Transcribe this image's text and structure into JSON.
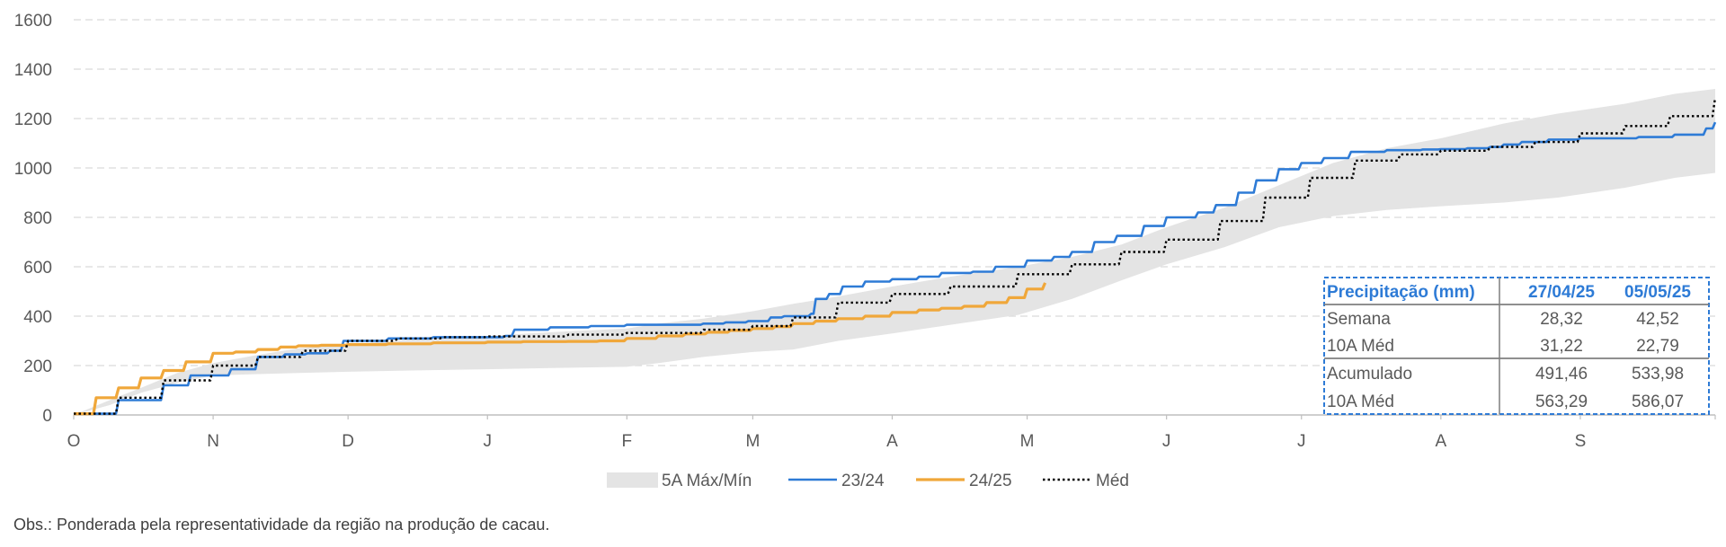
{
  "chart_data": {
    "type": "line",
    "title": "",
    "xlabel": "",
    "ylabel": "",
    "ylim": [
      0,
      1600
    ],
    "yticks": [
      0,
      200,
      400,
      600,
      800,
      1000,
      1200,
      1400,
      1600
    ],
    "xlim": [
      0,
      365
    ],
    "x_ticks": [
      {
        "label": "O",
        "day": 0
      },
      {
        "label": "N",
        "day": 31
      },
      {
        "label": "D",
        "day": 61
      },
      {
        "label": "J",
        "day": 92
      },
      {
        "label": "F",
        "day": 123
      },
      {
        "label": "M",
        "day": 151
      },
      {
        "label": "A",
        "day": 182
      },
      {
        "label": "M",
        "day": 212
      },
      {
        "label": "J",
        "day": 243
      },
      {
        "label": "J",
        "day": 273
      },
      {
        "label": "A",
        "day": 304
      },
      {
        "label": "S",
        "day": 335
      }
    ],
    "grid": true,
    "legend_position": "bottom",
    "colors": {
      "band": "#E4E4E4",
      "s2324": "#2E7BD6",
      "s2425": "#F0A73A",
      "med": "#000000",
      "grid": "#D9D9D9",
      "axis": "#BFBFBF"
    },
    "band": {
      "name": "5A Máx/Mín",
      "x": [
        0,
        8,
        15,
        23,
        31,
        40,
        50,
        61,
        75,
        92,
        106,
        123,
        130,
        140,
        151,
        160,
        170,
        182,
        195,
        210,
        222,
        233,
        243,
        256,
        268,
        280,
        292,
        304,
        318,
        330,
        345,
        356,
        365
      ],
      "min": [
        0,
        40,
        90,
        130,
        160,
        165,
        170,
        175,
        180,
        185,
        190,
        195,
        210,
        235,
        255,
        265,
        300,
        330,
        365,
        405,
        470,
        545,
        610,
        680,
        760,
        805,
        830,
        845,
        860,
        880,
        920,
        960,
        980
      ],
      "max": [
        0,
        60,
        110,
        170,
        210,
        240,
        270,
        285,
        305,
        320,
        335,
        350,
        370,
        390,
        420,
        450,
        480,
        520,
        560,
        600,
        640,
        690,
        760,
        840,
        930,
        1020,
        1080,
        1120,
        1180,
        1220,
        1260,
        1300,
        1320
      ]
    },
    "series": [
      {
        "name": "23/24",
        "x": [
          0,
          10,
          20,
          26,
          28,
          35,
          41,
          47,
          52,
          57,
          60,
          70,
          80,
          90,
          96,
          98,
          106,
          115,
          123,
          133,
          140,
          145,
          150,
          155,
          158,
          164,
          165,
          168,
          171,
          176,
          182,
          188,
          193,
          200,
          205,
          212,
          218,
          222,
          227,
          232,
          238,
          243,
          250,
          254,
          259,
          263,
          268,
          273,
          278,
          284,
          292,
          300,
          304,
          310,
          315,
          318,
          322,
          328,
          335,
          341,
          348,
          356,
          363,
          365
        ],
        "values": [
          5,
          60,
          120,
          160,
          160,
          185,
          235,
          245,
          250,
          260,
          300,
          310,
          315,
          315,
          320,
          345,
          355,
          360,
          365,
          365,
          370,
          375,
          380,
          395,
          400,
          410,
          470,
          490,
          520,
          540,
          550,
          560,
          575,
          580,
          600,
          625,
          640,
          660,
          700,
          725,
          765,
          800,
          820,
          850,
          900,
          950,
          995,
          1020,
          1040,
          1065,
          1072,
          1075,
          1076,
          1080,
          1085,
          1095,
          1105,
          1115,
          1120,
          1120,
          1125,
          1135,
          1160,
          1185
        ]
      },
      {
        "name": "24/25",
        "x": [
          0,
          5,
          10,
          15,
          20,
          25,
          31,
          36,
          41,
          46,
          50,
          55,
          61,
          70,
          80,
          92,
          100,
          110,
          117,
          123,
          130,
          136,
          141,
          146,
          151,
          156,
          160,
          165,
          170,
          176,
          182,
          188,
          193,
          198,
          203,
          208,
          212,
          216
        ],
        "values": [
          5,
          70,
          110,
          150,
          180,
          215,
          250,
          255,
          265,
          275,
          280,
          282,
          285,
          288,
          292,
          295,
          297,
          298,
          300,
          310,
          320,
          328,
          335,
          342,
          350,
          358,
          370,
          380,
          390,
          400,
          415,
          425,
          432,
          440,
          455,
          475,
          510,
          535
        ]
      },
      {
        "name": "Méd",
        "x": [
          0,
          10,
          20,
          31,
          41,
          51,
          61,
          72,
          82,
          92,
          110,
          123,
          140,
          151,
          160,
          170,
          182,
          195,
          210,
          222,
          233,
          243,
          255,
          265,
          275,
          285,
          295,
          304,
          315,
          325,
          335,
          345,
          355,
          365
        ],
        "values": [
          5,
          70,
          140,
          200,
          235,
          260,
          300,
          310,
          315,
          318,
          325,
          332,
          345,
          360,
          395,
          455,
          490,
          520,
          570,
          610,
          660,
          710,
          785,
          880,
          960,
          1030,
          1055,
          1070,
          1085,
          1105,
          1140,
          1170,
          1210,
          1285
        ]
      }
    ],
    "table": {
      "headers": [
        "Precipitação (mm)",
        "27/04/25",
        "05/05/25"
      ],
      "rows": [
        [
          "Semana",
          "28,32",
          "42,52"
        ],
        [
          "10A Méd",
          "31,22",
          "22,79"
        ],
        [
          "Acumulado",
          "491,46",
          "533,98"
        ],
        [
          "10A Méd",
          "563,29",
          "586,07"
        ]
      ]
    },
    "note": "Obs.: Ponderada pela representatividade da região na produção de cacau."
  }
}
